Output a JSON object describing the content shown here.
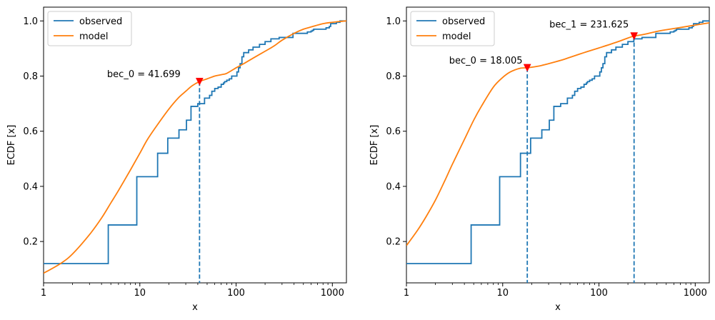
{
  "chart_data": [
    {
      "type": "line",
      "xscale": "log",
      "xlabel": "x",
      "ylabel": "ECDF [x]",
      "xlim": [
        1,
        1400
      ],
      "ylim": [
        0.05,
        1.05
      ],
      "xticks": [
        1,
        10,
        100,
        1000
      ],
      "xtick_labels": [
        "1",
        "10",
        "100",
        "1000"
      ],
      "yticks": [
        0.2,
        0.4,
        0.6,
        0.8,
        1.0
      ],
      "ytick_labels": [
        "0.2",
        "0.4",
        "0.6",
        "0.8",
        "1.0"
      ],
      "legend": {
        "placement": "top-left",
        "entries": [
          "observed",
          "model"
        ]
      },
      "series": [
        {
          "name": "observed",
          "color": "#1f77b4",
          "kind": "step",
          "x": [
            1,
            4.7,
            9.3,
            15.3,
            19.5,
            25.5,
            30.5,
            34,
            40,
            47,
            53,
            56,
            60,
            65,
            70,
            74,
            76,
            80,
            85,
            90,
            102,
            106,
            110,
            115,
            120,
            135,
            150,
            175,
            200,
            230,
            280,
            390,
            550,
            600,
            620,
            640,
            860,
            930,
            960,
            1100,
            1200,
            1300,
            1400
          ],
          "y": [
            0.12,
            0.26,
            0.435,
            0.52,
            0.575,
            0.605,
            0.64,
            0.69,
            0.7,
            0.72,
            0.73,
            0.745,
            0.755,
            0.76,
            0.77,
            0.775,
            0.78,
            0.785,
            0.79,
            0.8,
            0.815,
            0.83,
            0.845,
            0.87,
            0.885,
            0.895,
            0.905,
            0.915,
            0.925,
            0.935,
            0.94,
            0.955,
            0.96,
            0.963,
            0.966,
            0.97,
            0.975,
            0.98,
            0.99,
            0.995,
            1.0,
            1.0,
            1.0
          ]
        },
        {
          "name": "model",
          "color": "#ff7f0e",
          "kind": "line",
          "x": [
            1,
            1.5,
            2,
            3,
            4,
            5,
            6,
            8,
            10,
            12,
            15,
            20,
            25,
            30,
            35,
            41.699,
            50,
            60,
            70,
            80,
            100,
            120,
            150,
            200,
            250,
            300,
            400,
            500,
            600,
            800,
            1000,
            1200,
            1400
          ],
          "y": [
            0.085,
            0.12,
            0.155,
            0.225,
            0.285,
            0.34,
            0.385,
            0.46,
            0.52,
            0.57,
            0.62,
            0.68,
            0.72,
            0.745,
            0.765,
            0.78,
            0.79,
            0.8,
            0.805,
            0.81,
            0.83,
            0.845,
            0.865,
            0.89,
            0.91,
            0.93,
            0.955,
            0.97,
            0.978,
            0.99,
            0.995,
            0.998,
            1.0
          ]
        }
      ],
      "annotations": [
        {
          "x": 41.699,
          "y": 0.78,
          "label": "bec_0 = 41.699",
          "marker_color": "#ff0000",
          "line_color": "#1f77b4"
        }
      ]
    },
    {
      "type": "line",
      "xscale": "log",
      "xlabel": "x",
      "ylabel": "ECDF [x]",
      "xlim": [
        1,
        1400
      ],
      "ylim": [
        0.05,
        1.05
      ],
      "xticks": [
        1,
        10,
        100,
        1000
      ],
      "xtick_labels": [
        "1",
        "10",
        "100",
        "1000"
      ],
      "yticks": [
        0.2,
        0.4,
        0.6,
        0.8,
        1.0
      ],
      "ytick_labels": [
        "0.2",
        "0.4",
        "0.6",
        "0.8",
        "1.0"
      ],
      "legend": {
        "placement": "top-left",
        "entries": [
          "observed",
          "model"
        ]
      },
      "series": [
        {
          "name": "observed",
          "color": "#1f77b4",
          "kind": "step",
          "x": [
            1,
            4.7,
            9.3,
            15.3,
            19.5,
            25.5,
            30.5,
            34,
            40,
            47,
            53,
            56,
            60,
            65,
            70,
            74,
            76,
            80,
            85,
            90,
            102,
            106,
            110,
            115,
            120,
            135,
            150,
            175,
            200,
            230,
            280,
            390,
            550,
            600,
            620,
            640,
            860,
            930,
            960,
            1100,
            1200,
            1300,
            1400
          ],
          "y": [
            0.12,
            0.26,
            0.435,
            0.52,
            0.575,
            0.605,
            0.64,
            0.69,
            0.7,
            0.72,
            0.73,
            0.745,
            0.755,
            0.76,
            0.77,
            0.775,
            0.78,
            0.785,
            0.79,
            0.8,
            0.815,
            0.83,
            0.845,
            0.87,
            0.885,
            0.895,
            0.905,
            0.915,
            0.925,
            0.935,
            0.94,
            0.955,
            0.96,
            0.963,
            0.966,
            0.97,
            0.975,
            0.98,
            0.99,
            0.995,
            1.0,
            1.0,
            1.0
          ]
        },
        {
          "name": "model",
          "color": "#ff7f0e",
          "kind": "line",
          "x": [
            1,
            1.3,
            1.6,
            2,
            2.5,
            3,
            4,
            5,
            6,
            8,
            10,
            12,
            15,
            18.005,
            20,
            25,
            30,
            40,
            50,
            70,
            100,
            150,
            200,
            231.625,
            300,
            400,
            500,
            700,
            1000,
            1400
          ],
          "y": [
            0.185,
            0.24,
            0.29,
            0.35,
            0.42,
            0.48,
            0.57,
            0.64,
            0.69,
            0.76,
            0.795,
            0.815,
            0.828,
            0.83,
            0.832,
            0.838,
            0.845,
            0.857,
            0.868,
            0.885,
            0.902,
            0.922,
            0.938,
            0.945,
            0.952,
            0.962,
            0.968,
            0.976,
            0.985,
            0.993
          ]
        }
      ],
      "annotations": [
        {
          "x": 18.005,
          "y": 0.83,
          "label": "bec_0 = 18.005",
          "marker_color": "#ff0000",
          "line_color": "#1f77b4"
        },
        {
          "x": 231.625,
          "y": 0.945,
          "label": "bec_1 = 231.625",
          "marker_color": "#ff0000",
          "line_color": "#1f77b4"
        }
      ]
    }
  ]
}
